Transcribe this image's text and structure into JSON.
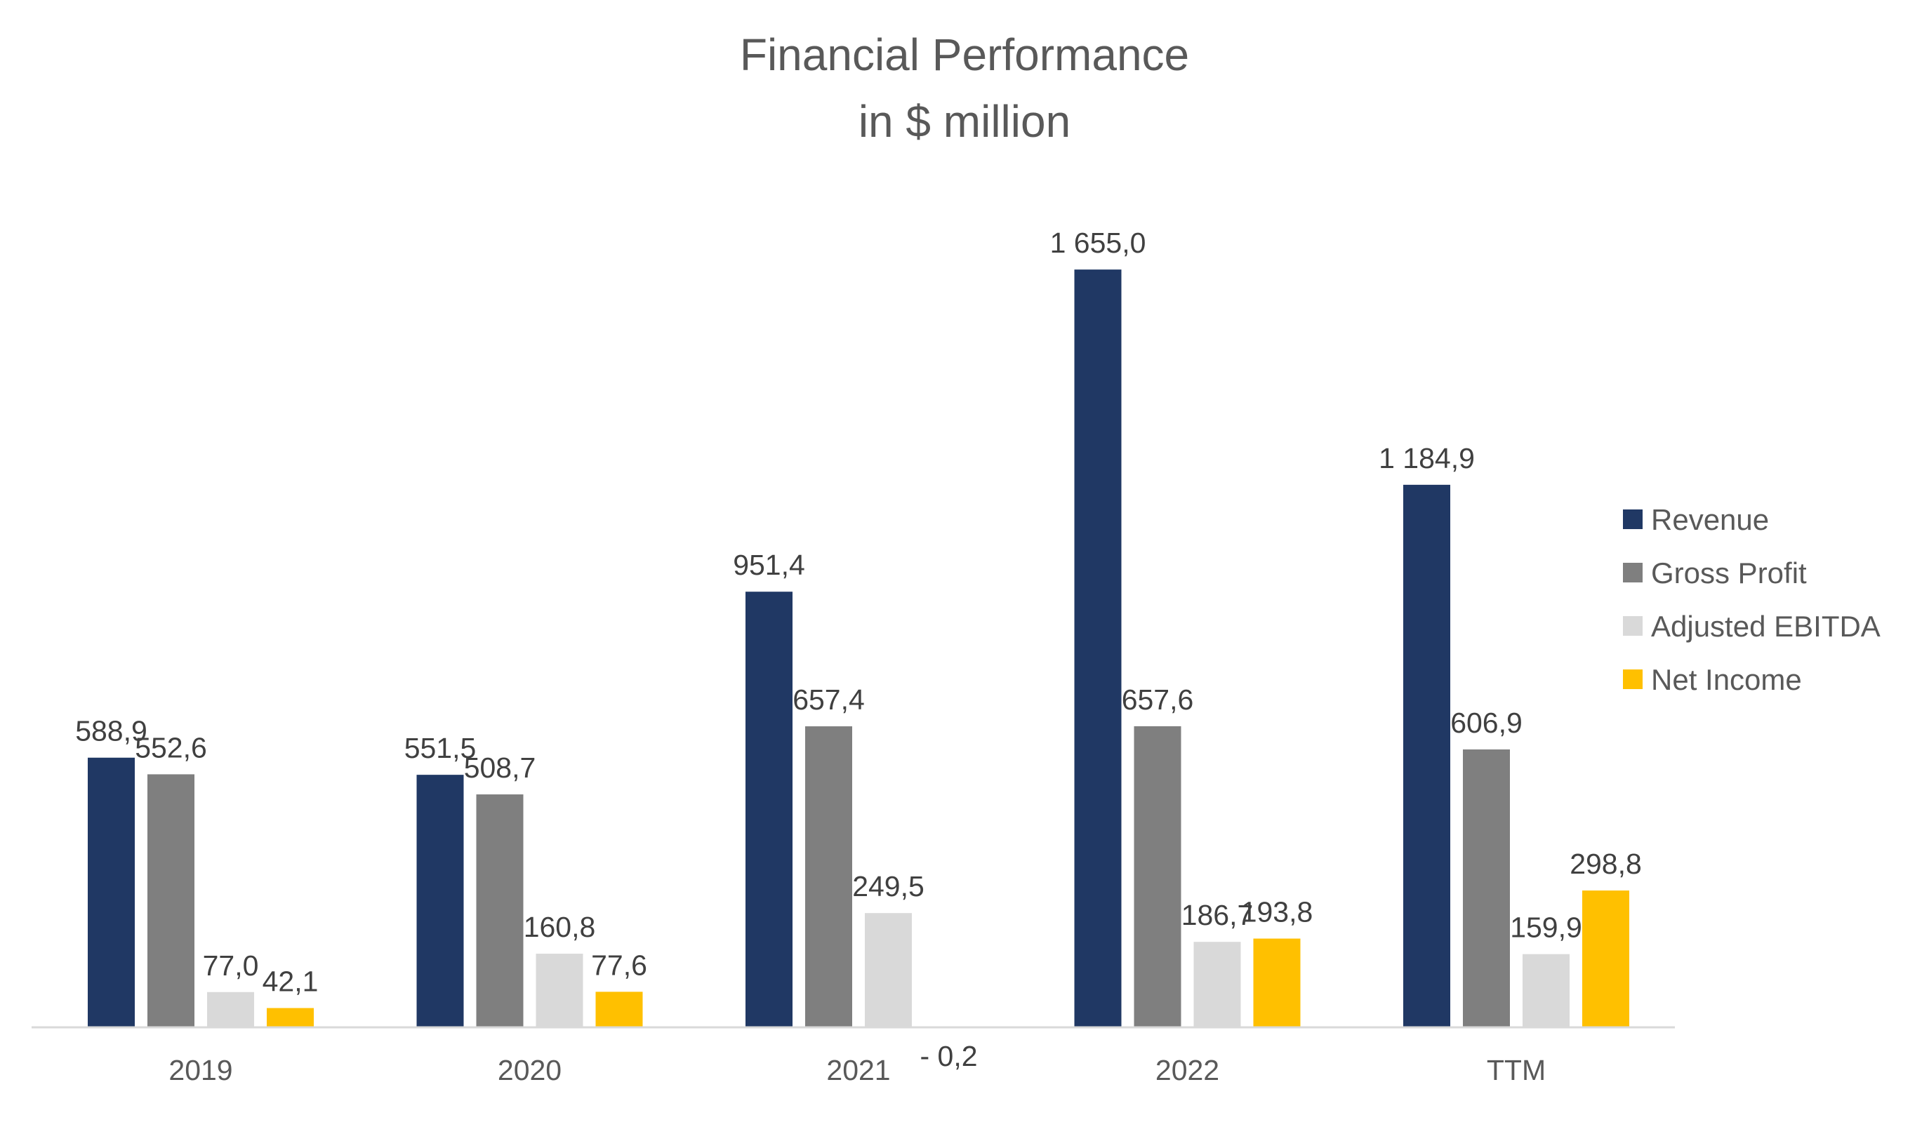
{
  "chart_data": {
    "type": "bar",
    "title": [
      "Financial Performance",
      "in $ million"
    ],
    "categories": [
      "2019",
      "2020",
      "2021",
      "2022",
      "TTM"
    ],
    "series": [
      {
        "name": "Revenue",
        "color": "#203864",
        "values": [
          588.9,
          551.5,
          951.4,
          1655.0,
          1184.9
        ],
        "labels": [
          "588,9",
          "551,5",
          "951,4",
          "1 655,0",
          "1 184,9"
        ]
      },
      {
        "name": "Gross Profit",
        "color": "#7f7f7f",
        "values": [
          552.6,
          508.7,
          657.4,
          657.6,
          606.9
        ],
        "labels": [
          "552,6",
          "508,7",
          "657,4",
          "657,6",
          "606,9"
        ]
      },
      {
        "name": "Adjusted EBITDA",
        "color": "#d9d9d9",
        "values": [
          77.0,
          160.8,
          249.5,
          186.7,
          159.9
        ],
        "labels": [
          "77,0",
          "160,8",
          "249,5",
          "186,7",
          "159,9"
        ]
      },
      {
        "name": "Net Income",
        "color": "#ffc000",
        "values": [
          42.1,
          77.6,
          -0.2,
          193.8,
          298.8
        ],
        "labels": [
          "42,1",
          "77,6",
          "- 0,2",
          "193,8",
          "298,8"
        ]
      }
    ],
    "axis_color": "#d9d9d9",
    "grid": false,
    "legend_position": "right"
  }
}
